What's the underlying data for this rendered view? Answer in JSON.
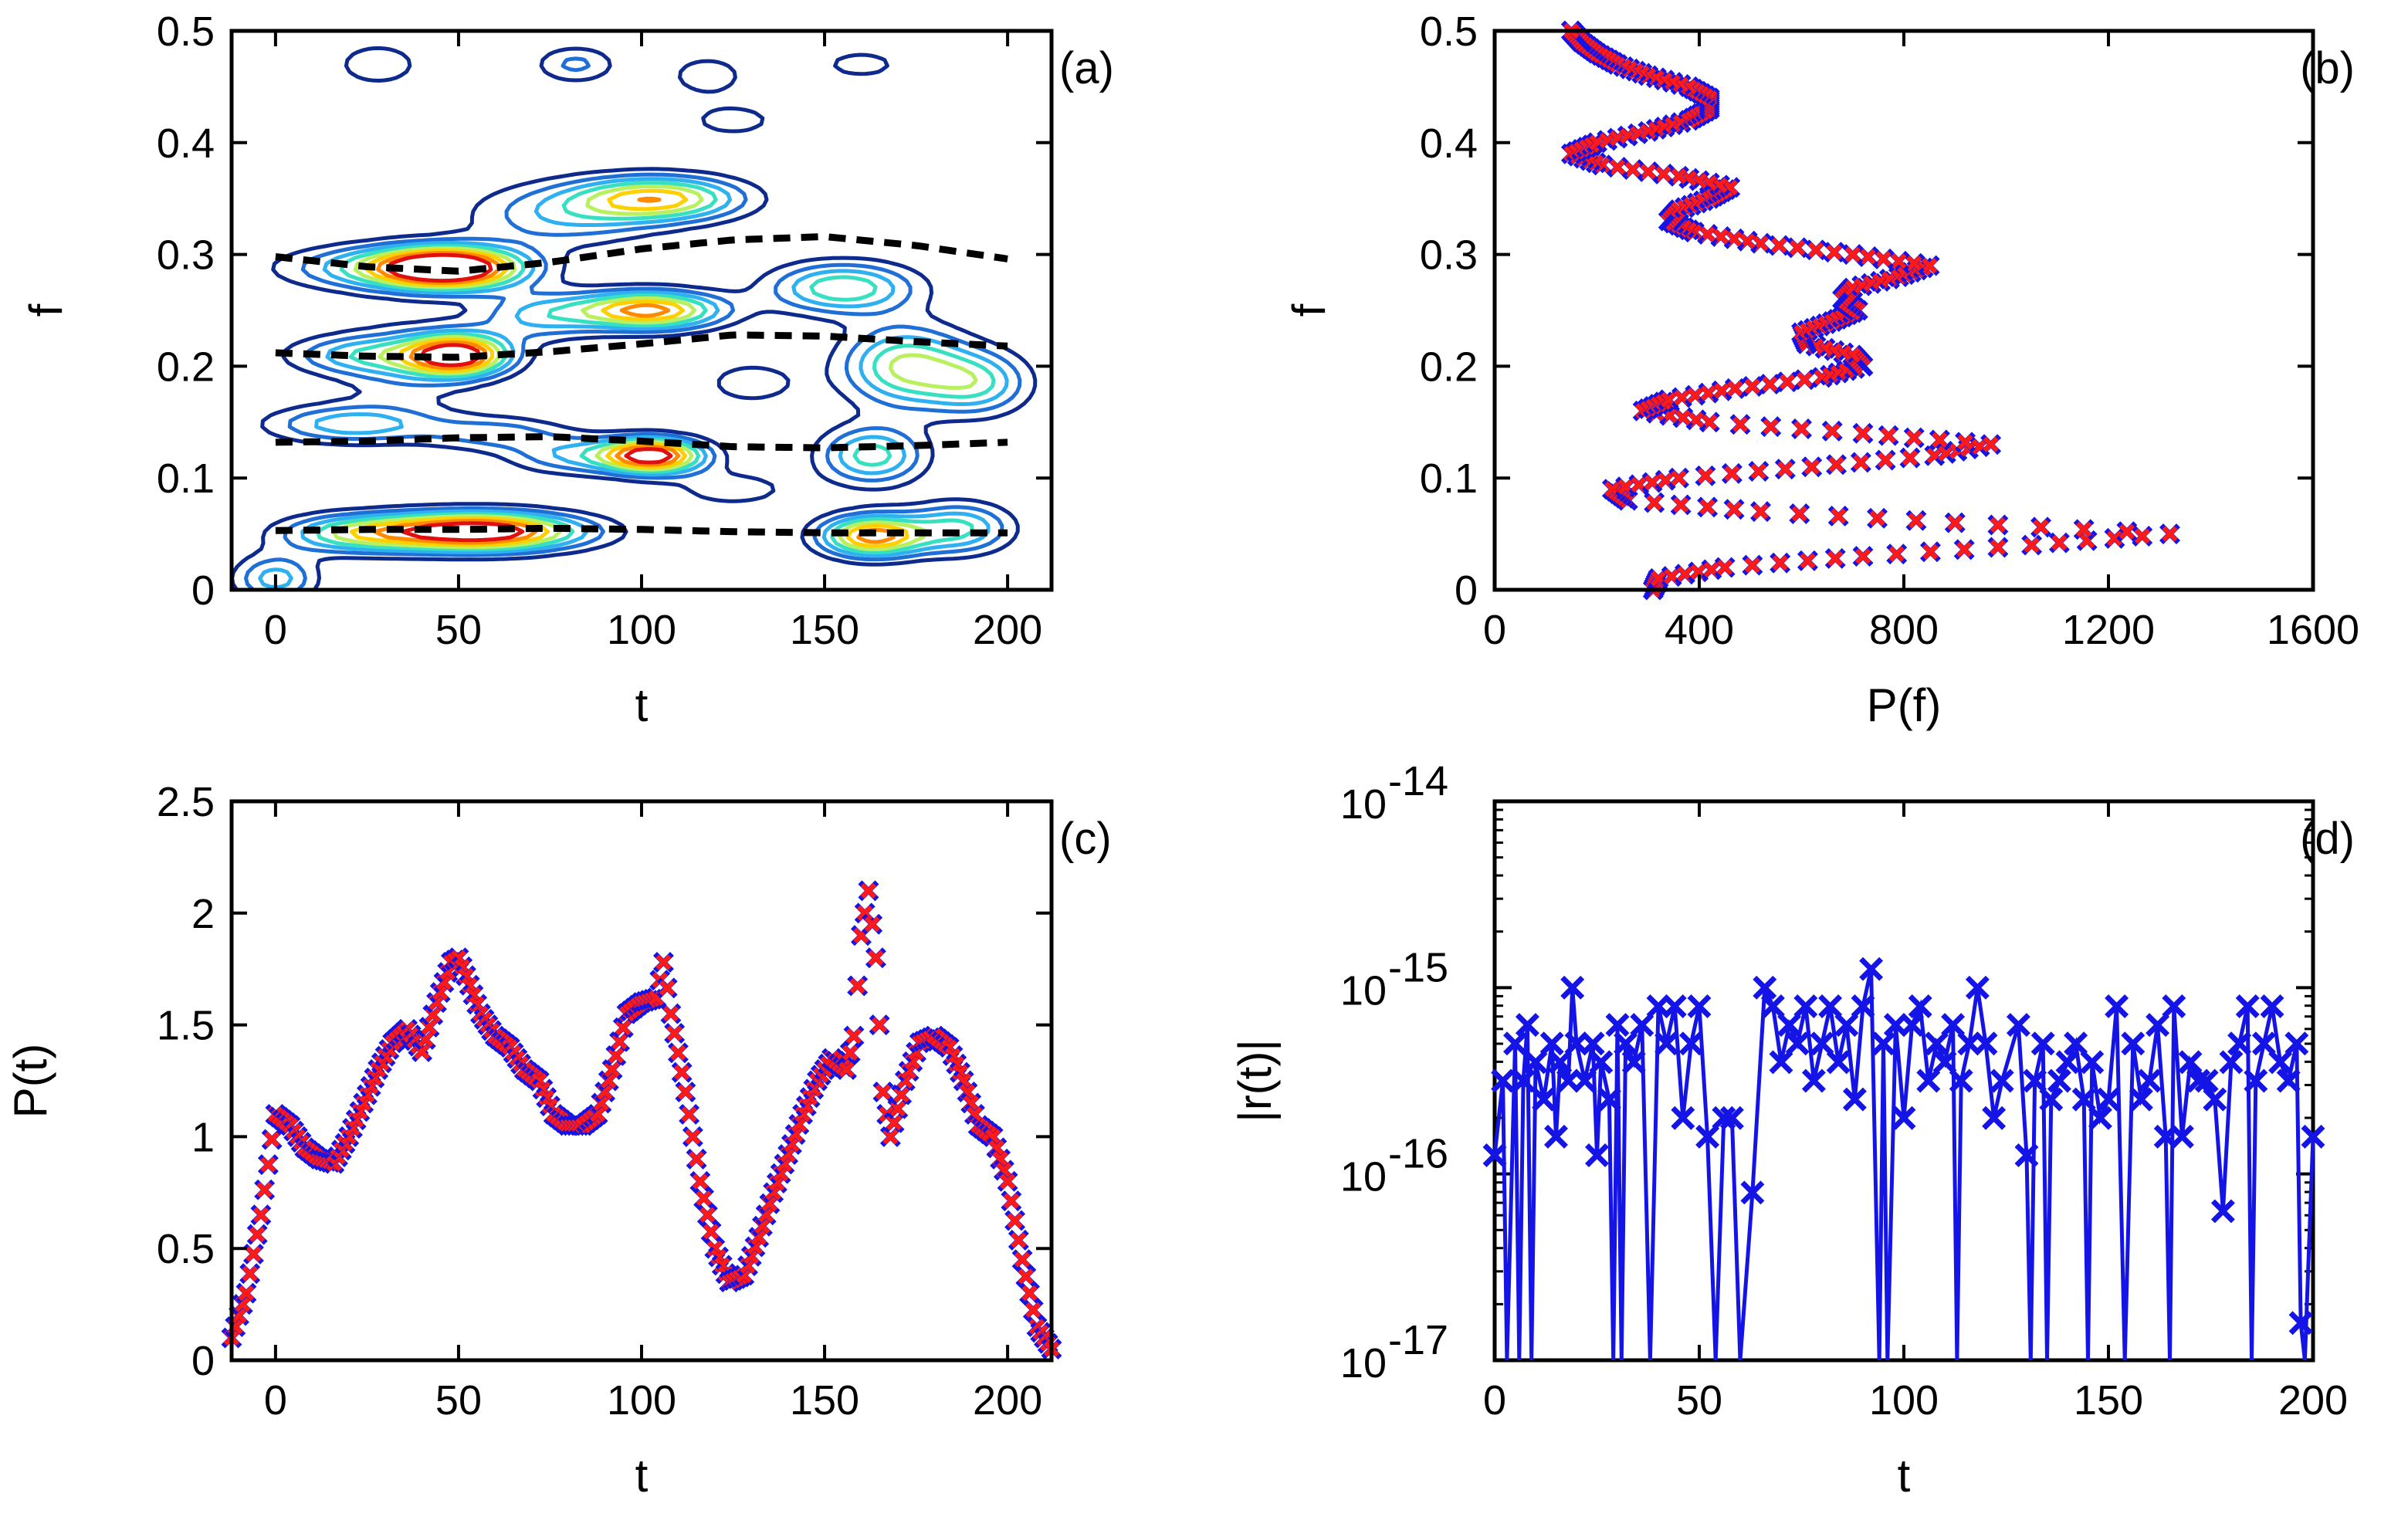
{
  "chart_data": [
    {
      "panel": "(a)",
      "type": "contour",
      "xlabel": "t",
      "ylabel": "f",
      "xlim": [
        -12,
        212
      ],
      "ylim": [
        0,
        0.5
      ],
      "xticks": [
        "0",
        "50",
        "100",
        "150",
        "200"
      ],
      "yticks": [
        "0",
        "0.1",
        "0.2",
        "0.3",
        "0.4",
        "0.5"
      ],
      "colors": [
        "#0d2a8c",
        "#1f6fd6",
        "#2fb0f0",
        "#36e0c0",
        "#b8f060",
        "#ffd000",
        "#ff8a00",
        "#e01010"
      ],
      "peaks": [
        {
          "t": 48,
          "f": 0.288,
          "height": 7.3,
          "st": 14,
          "sf": 0.013
        },
        {
          "t": 30,
          "f": 0.288,
          "height": 3.2,
          "st": 20,
          "sf": 0.014
        },
        {
          "t": 105,
          "f": 0.35,
          "height": 5.2,
          "st": 16,
          "sf": 0.014
        },
        {
          "t": 78,
          "f": 0.335,
          "height": 2.4,
          "st": 18,
          "sf": 0.02
        },
        {
          "t": 50,
          "f": 0.21,
          "height": 7.0,
          "st": 10,
          "sf": 0.013
        },
        {
          "t": 22,
          "f": 0.21,
          "height": 2.5,
          "st": 14,
          "sf": 0.012
        },
        {
          "t": 102,
          "f": 0.25,
          "height": 6.2,
          "st": 14,
          "sf": 0.012
        },
        {
          "t": 72,
          "f": 0.245,
          "height": 2.6,
          "st": 12,
          "sf": 0.015
        },
        {
          "t": 155,
          "f": 0.27,
          "height": 4.1,
          "st": 14,
          "sf": 0.016
        },
        {
          "t": 172,
          "f": 0.2,
          "height": 4.3,
          "st": 12,
          "sf": 0.025
        },
        {
          "t": 192,
          "f": 0.185,
          "height": 3.2,
          "st": 10,
          "sf": 0.02
        },
        {
          "t": 20,
          "f": 0.148,
          "height": 3.0,
          "st": 16,
          "sf": 0.012
        },
        {
          "t": 60,
          "f": 0.14,
          "height": 2.1,
          "st": 14,
          "sf": 0.011
        },
        {
          "t": 103,
          "f": 0.12,
          "height": 7.3,
          "st": 10,
          "sf": 0.011
        },
        {
          "t": 80,
          "f": 0.12,
          "height": 2.3,
          "st": 12,
          "sf": 0.012
        },
        {
          "t": 163,
          "f": 0.12,
          "height": 3.8,
          "st": 10,
          "sf": 0.018
        },
        {
          "t": 55,
          "f": 0.052,
          "height": 8.0,
          "st": 20,
          "sf": 0.012
        },
        {
          "t": 20,
          "f": 0.05,
          "height": 3.2,
          "st": 14,
          "sf": 0.012
        },
        {
          "t": 163,
          "f": 0.048,
          "height": 6.2,
          "st": 10,
          "sf": 0.013
        },
        {
          "t": 187,
          "f": 0.055,
          "height": 3.5,
          "st": 10,
          "sf": 0.016
        },
        {
          "t": 0,
          "f": 0.01,
          "height": 3.0,
          "st": 8,
          "sf": 0.015
        },
        {
          "t": 82,
          "f": 0.47,
          "height": 2.0,
          "st": 8,
          "sf": 0.012
        },
        {
          "t": 118,
          "f": 0.46,
          "height": 1.8,
          "st": 7,
          "sf": 0.012
        },
        {
          "t": 28,
          "f": 0.47,
          "height": 1.6,
          "st": 9,
          "sf": 0.015
        },
        {
          "t": 130,
          "f": 0.185,
          "height": 1.5,
          "st": 10,
          "sf": 0.015
        },
        {
          "t": 35,
          "f": 0.2,
          "height": 1.5,
          "st": 14,
          "sf": 0.03
        },
        {
          "t": 125,
          "f": 0.09,
          "height": 1.5,
          "st": 12,
          "sf": 0.012
        },
        {
          "t": 125,
          "f": 0.42,
          "height": 1.4,
          "st": 10,
          "sf": 0.012
        },
        {
          "t": 160,
          "f": 0.47,
          "height": 1.3,
          "st": 10,
          "sf": 0.012
        }
      ],
      "levels": [
        1.0,
        1.8,
        2.6,
        3.4,
        4.2,
        5.0,
        5.8,
        6.6
      ],
      "ridges": [
        {
          "t": [
            0,
            25,
            50,
            75,
            100,
            125,
            150,
            175,
            200
          ],
          "f": [
            0.298,
            0.289,
            0.285,
            0.293,
            0.305,
            0.313,
            0.316,
            0.308,
            0.296
          ]
        },
        {
          "t": [
            0,
            25,
            50,
            75,
            100,
            125,
            150,
            175,
            200
          ],
          "f": [
            0.212,
            0.209,
            0.208,
            0.213,
            0.22,
            0.228,
            0.227,
            0.222,
            0.218
          ]
        },
        {
          "t": [
            0,
            25,
            50,
            75,
            100,
            125,
            150,
            175,
            200
          ],
          "f": [
            0.132,
            0.133,
            0.136,
            0.137,
            0.133,
            0.128,
            0.127,
            0.129,
            0.132
          ]
        },
        {
          "t": [
            0,
            25,
            50,
            75,
            100,
            125,
            150,
            175,
            200
          ],
          "f": [
            0.053,
            0.054,
            0.054,
            0.055,
            0.054,
            0.052,
            0.051,
            0.051,
            0.051
          ]
        }
      ],
      "panel_label": "(a)"
    },
    {
      "panel": "(b)",
      "type": "scatter",
      "xlabel": "P(f)",
      "ylabel": "f",
      "xlim": [
        0,
        1600
      ],
      "ylim": [
        0,
        0.5
      ],
      "xticks": [
        "0",
        "400",
        "800",
        "1200",
        "1600"
      ],
      "yticks": [
        "0",
        "0.1",
        "0.2",
        "0.3",
        "0.4",
        "0.5"
      ],
      "curve": {
        "f": [
          0.0,
          0.01,
          0.02,
          0.03,
          0.04,
          0.05,
          0.06,
          0.07,
          0.08,
          0.09,
          0.1,
          0.11,
          0.12,
          0.13,
          0.14,
          0.15,
          0.16,
          0.17,
          0.18,
          0.19,
          0.2,
          0.21,
          0.22,
          0.23,
          0.24,
          0.25,
          0.26,
          0.27,
          0.28,
          0.29,
          0.3,
          0.31,
          0.32,
          0.33,
          0.34,
          0.35,
          0.36,
          0.37,
          0.38,
          0.39,
          0.4,
          0.41,
          0.42,
          0.43,
          0.44,
          0.45,
          0.46,
          0.47,
          0.48,
          0.49,
          0.5
        ],
        "P": [
          310,
          320,
          450,
          720,
          1050,
          1320,
          900,
          520,
          260,
          230,
          360,
          620,
          860,
          970,
          720,
          420,
          290,
          340,
          470,
          640,
          720,
          700,
          610,
          600,
          660,
          710,
          680,
          700,
          790,
          850,
          700,
          520,
          390,
          340,
          360,
          420,
          460,
          360,
          210,
          150,
          200,
          300,
          380,
          420,
          420,
          380,
          300,
          240,
          200,
          170,
          150
        ]
      },
      "panel_label": "(b)"
    },
    {
      "panel": "(c)",
      "type": "scatter",
      "xlabel": "t",
      "ylabel": "P(t)",
      "xlim": [
        -12,
        212
      ],
      "ylim": [
        0,
        2.5
      ],
      "xticks": [
        "0",
        "50",
        "100",
        "150",
        "200"
      ],
      "yticks": [
        "0",
        "0.5",
        "1",
        "1.5",
        "2",
        "2.5"
      ],
      "curve": {
        "t": [
          -12,
          -8,
          -4,
          0,
          4,
          8,
          12,
          16,
          20,
          24,
          28,
          32,
          36,
          40,
          44,
          48,
          50,
          52,
          56,
          60,
          64,
          68,
          72,
          76,
          80,
          84,
          88,
          92,
          96,
          100,
          104,
          106,
          108,
          112,
          116,
          120,
          124,
          128,
          132,
          136,
          140,
          144,
          148,
          152,
          156,
          158,
          160,
          162,
          164,
          166,
          168,
          172,
          176,
          180,
          184,
          188,
          192,
          196,
          200,
          204,
          208,
          212
        ],
        "P": [
          0.1,
          0.3,
          0.65,
          1.1,
          1.05,
          0.95,
          0.9,
          0.88,
          1.0,
          1.15,
          1.3,
          1.42,
          1.48,
          1.38,
          1.6,
          1.78,
          1.8,
          1.72,
          1.55,
          1.45,
          1.4,
          1.3,
          1.25,
          1.1,
          1.05,
          1.05,
          1.1,
          1.3,
          1.55,
          1.6,
          1.62,
          1.78,
          1.55,
          1.2,
          0.8,
          0.5,
          0.35,
          0.38,
          0.55,
          0.75,
          0.92,
          1.1,
          1.25,
          1.35,
          1.3,
          1.45,
          1.9,
          2.1,
          1.8,
          1.2,
          1.0,
          1.25,
          1.42,
          1.45,
          1.4,
          1.25,
          1.05,
          1.0,
          0.8,
          0.45,
          0.15,
          0.05
        ]
      },
      "panel_label": "(c)"
    },
    {
      "panel": "(d)",
      "type": "line",
      "xlabel": "t",
      "ylabel": "|r(t)|",
      "xlim": [
        0,
        200
      ],
      "ylim_log10": [
        -17,
        -14
      ],
      "xticks": [
        "0",
        "50",
        "100",
        "150",
        "200"
      ],
      "yticks": [
        {
          "base": "10",
          "exp": "-14"
        },
        {
          "base": "10",
          "exp": "-15"
        },
        {
          "base": "10",
          "exp": "-16"
        },
        {
          "base": "10",
          "exp": "-17"
        }
      ],
      "series": {
        "t": [
          0,
          2,
          3,
          5,
          6,
          7,
          8,
          9,
          10,
          12,
          14,
          15,
          16,
          18,
          19,
          20,
          22,
          24,
          25,
          26,
          28,
          29,
          30,
          31,
          32,
          34,
          36,
          38,
          40,
          42,
          44,
          46,
          48,
          50,
          52,
          54,
          56,
          58,
          60,
          63,
          66,
          68,
          70,
          72,
          74,
          76,
          78,
          80,
          82,
          84,
          86,
          88,
          90,
          92,
          94,
          95,
          96,
          98,
          100,
          102,
          104,
          106,
          108,
          110,
          112,
          113,
          114,
          116,
          118,
          120,
          122,
          124,
          128,
          130,
          131,
          132,
          134,
          135,
          136,
          138,
          140,
          142,
          144,
          145,
          146,
          148,
          150,
          152,
          154,
          156,
          158,
          160,
          162,
          164,
          165,
          166,
          168,
          170,
          172,
          174,
          176,
          178,
          180,
          182,
          184,
          185,
          186,
          188,
          190,
          192,
          194,
          196,
          197,
          198,
          200
        ],
        "log10r": [
          -15.9,
          -15.5,
          -17.0,
          -15.3,
          -17.0,
          -15.5,
          -15.2,
          -17.0,
          -15.4,
          -15.6,
          -15.3,
          -15.8,
          -15.4,
          -15.5,
          -15.0,
          -15.3,
          -15.5,
          -15.3,
          -15.9,
          -15.4,
          -15.6,
          -17.0,
          -15.2,
          -17.0,
          -15.3,
          -15.4,
          -15.2,
          -17.0,
          -15.1,
          -15.3,
          -15.1,
          -15.7,
          -15.3,
          -15.1,
          -15.8,
          -17.0,
          -15.7,
          -15.7,
          -17.0,
          -16.1,
          -15.0,
          -15.1,
          -15.4,
          -15.2,
          -15.3,
          -15.1,
          -15.5,
          -15.3,
          -15.1,
          -15.4,
          -15.2,
          -15.6,
          -15.1,
          -14.9,
          -17.0,
          -15.3,
          -17.0,
          -15.2,
          -15.7,
          -15.2,
          -15.1,
          -15.5,
          -15.3,
          -15.4,
          -15.2,
          -17.0,
          -15.5,
          -15.3,
          -15.0,
          -15.3,
          -15.7,
          -15.5,
          -15.2,
          -15.9,
          -17.0,
          -15.5,
          -15.3,
          -17.0,
          -15.6,
          -15.5,
          -15.4,
          -15.3,
          -15.6,
          -17.0,
          -15.4,
          -15.7,
          -15.6,
          -15.1,
          -17.0,
          -15.3,
          -15.6,
          -15.5,
          -15.2,
          -15.8,
          -17.0,
          -15.1,
          -15.8,
          -15.4,
          -15.5,
          -15.5,
          -15.6,
          -16.2,
          -15.4,
          -15.3,
          -15.1,
          -17.0,
          -15.5,
          -15.3,
          -15.1,
          -15.4,
          -15.5,
          -15.3,
          -16.8,
          -17.0,
          -15.8
        ]
      },
      "panel_label": "(d)"
    }
  ]
}
